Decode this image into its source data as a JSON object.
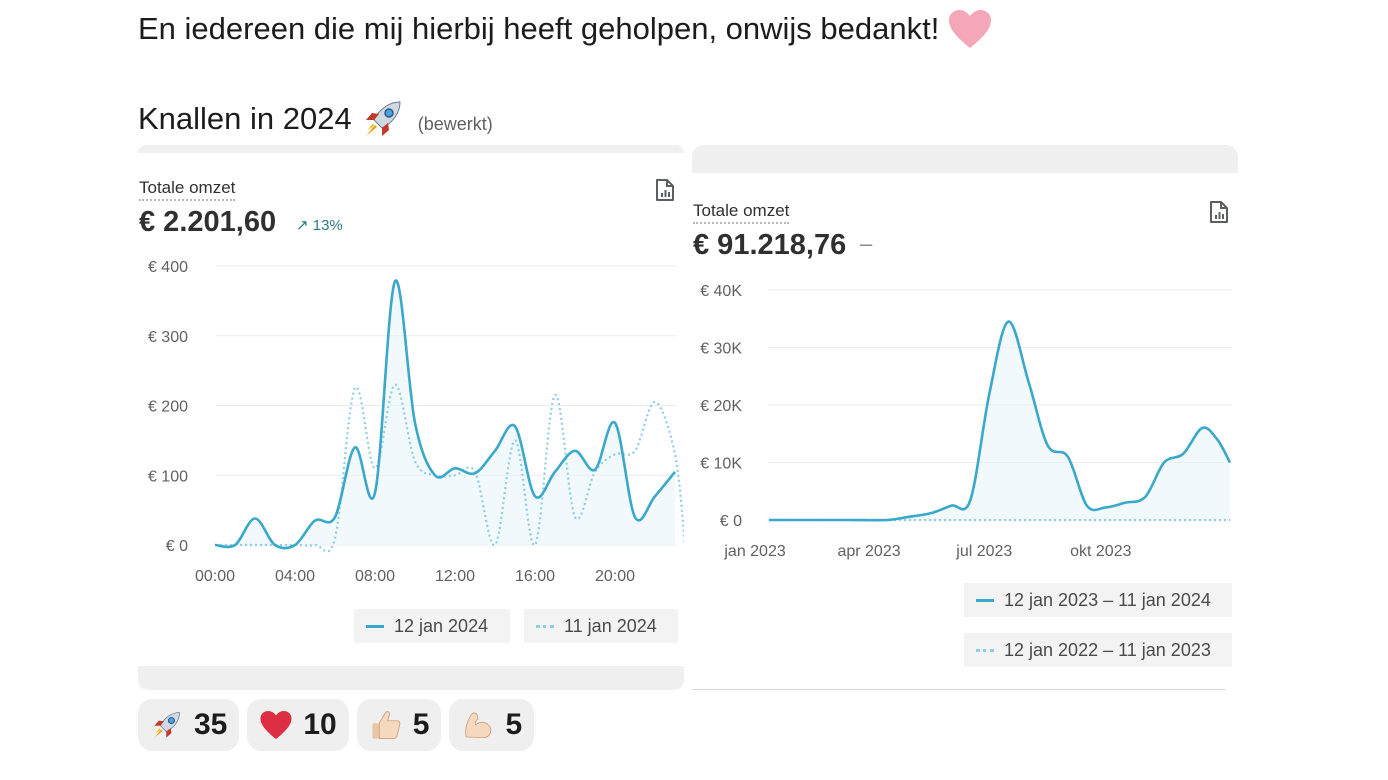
{
  "message": {
    "intro_text": "En iedereen die mij hierbij heeft geholpen, onwijs bedankt!",
    "section_title": "Knallen in 2024",
    "edited_label": "(bewerkt)"
  },
  "cards": [
    {
      "metric_label": "Totale omzet",
      "metric_value": "€ 2.201,60",
      "metric_change": "13%",
      "legend": [
        "12 jan 2024",
        "11 jan 2024"
      ]
    },
    {
      "metric_label": "Totale omzet",
      "metric_value": "€ 91.218,76",
      "metric_change": "–",
      "legend": [
        "12 jan 2023 – 11 jan 2024",
        "12 jan 2022 – 11 jan 2023"
      ]
    }
  ],
  "chart_data": [
    {
      "type": "line",
      "title": "",
      "xlabel": "",
      "ylabel": "",
      "x_ticks": [
        "00:00",
        "04:00",
        "08:00",
        "12:00",
        "16:00",
        "20:00"
      ],
      "y_ticks": [
        "€ 0",
        "€ 100",
        "€ 200",
        "€ 300",
        "€ 400"
      ],
      "ylim": [
        0,
        400
      ],
      "x": [
        0,
        1,
        2,
        3,
        4,
        5,
        6,
        7,
        8,
        9,
        10,
        11,
        12,
        13,
        14,
        15,
        16,
        17,
        18,
        19,
        20,
        21,
        22,
        23
      ],
      "series": [
        {
          "name": "12 jan 2024",
          "style": "solid",
          "values": [
            0,
            0,
            38,
            0,
            0,
            35,
            40,
            140,
            75,
            378,
            175,
            100,
            110,
            103,
            135,
            170,
            70,
            105,
            135,
            108,
            175,
            40,
            70,
            105
          ]
        },
        {
          "name": "11 jan 2024",
          "style": "dotted",
          "values": [
            0,
            0,
            0,
            0,
            0,
            0,
            10,
            225,
            110,
            230,
            120,
            100,
            100,
            105,
            0,
            150,
            0,
            215,
            40,
            105,
            130,
            135,
            205,
            130
          ]
        }
      ],
      "grid": true,
      "legend_position": "bottom-right",
      "colors": {
        "current": "#3aa8cb",
        "previous": "#8fcde0"
      }
    },
    {
      "type": "line",
      "title": "",
      "xlabel": "",
      "ylabel": "",
      "x_ticks": [
        "jan 2023",
        "apr 2023",
        "jul 2023",
        "okt 2023"
      ],
      "y_ticks": [
        "€ 0",
        "€ 10K",
        "€ 20K",
        "€ 30K",
        "€ 40K"
      ],
      "ylim": [
        0,
        40000
      ],
      "series": [
        {
          "name": "12 jan 2023 – 11 jan 2024",
          "style": "solid",
          "points": [
            [
              "2023-01-12",
              0
            ],
            [
              "2023-02-15",
              0
            ],
            [
              "2023-03-15",
              0
            ],
            [
              "2023-04-15",
              0
            ],
            [
              "2023-05-01",
              500
            ],
            [
              "2023-05-20",
              1200
            ],
            [
              "2023-06-05",
              2500
            ],
            [
              "2023-06-20",
              3500
            ],
            [
              "2023-07-05",
              22000
            ],
            [
              "2023-07-20",
              34500
            ],
            [
              "2023-08-05",
              24000
            ],
            [
              "2023-08-20",
              13000
            ],
            [
              "2023-09-05",
              11000
            ],
            [
              "2023-09-20",
              2500
            ],
            [
              "2023-10-05",
              2200
            ],
            [
              "2023-10-20",
              3000
            ],
            [
              "2023-11-05",
              4000
            ],
            [
              "2023-11-20",
              10000
            ],
            [
              "2023-12-05",
              11500
            ],
            [
              "2023-12-20",
              16000
            ],
            [
              "2024-01-01",
              14000
            ],
            [
              "2024-01-11",
              10000
            ]
          ]
        },
        {
          "name": "12 jan 2022 – 11 jan 2023",
          "style": "dotted",
          "points": [
            [
              "2023-01-12",
              0
            ],
            [
              "2024-01-11",
              0
            ]
          ]
        }
      ],
      "grid": true,
      "legend_position": "bottom-right",
      "colors": {
        "current": "#3aa8cb",
        "previous": "#8fcde0"
      }
    }
  ],
  "reactions": [
    {
      "emoji": "rocket-icon",
      "count": "35"
    },
    {
      "emoji": "red-heart-icon",
      "count": "10"
    },
    {
      "emoji": "thumbs-up-icon",
      "count": "5"
    },
    {
      "emoji": "flexed-biceps-icon",
      "count": "5"
    }
  ]
}
